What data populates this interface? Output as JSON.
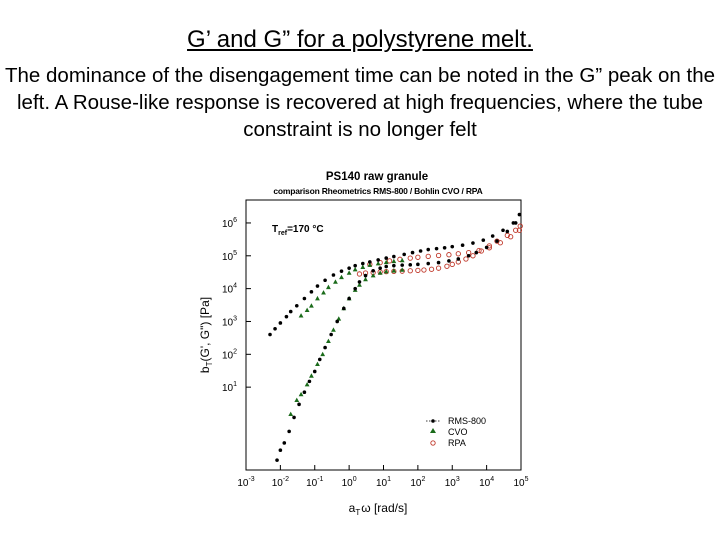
{
  "slide": {
    "title": "G’ and G” for a polystyrene melt.",
    "body": "The dominance of the disengagement time can be noted in the G” peak on the left. A Rouse-like response is recovered at high frequencies, where the tube constraint is no longer felt"
  },
  "chart_data": {
    "type": "scatter",
    "title": "PS140 raw granule",
    "subtitle": "comparison Rheometrics RMS-800 / Bohlin CVO / RPA",
    "annotation": {
      "base": "T",
      "sub": "ref",
      "text": "=170 °C"
    },
    "xlabel": {
      "base": "a",
      "sub": "T",
      "text": "ω [rad/s]"
    },
    "ylabel": {
      "base": "b",
      "sub": "T",
      "text": "(G', G\") [Pa]"
    },
    "x_scale": "log",
    "y_scale": "log",
    "xlim": [
      0.001,
      100000
    ],
    "ylim": [
      0.03,
      5000000
    ],
    "x_ticks": [
      {
        "base": "10",
        "exp": "-3"
      },
      {
        "base": "10",
        "exp": "-2"
      },
      {
        "base": "10",
        "exp": "-1"
      },
      {
        "base": "10",
        "exp": "0"
      },
      {
        "base": "10",
        "exp": "1"
      },
      {
        "base": "10",
        "exp": "2"
      },
      {
        "base": "10",
        "exp": "3"
      },
      {
        "base": "10",
        "exp": "4"
      },
      {
        "base": "10",
        "exp": "5"
      }
    ],
    "y_ticks": [
      {
        "base": "10",
        "exp": "1"
      },
      {
        "base": "10",
        "exp": "2"
      },
      {
        "base": "10",
        "exp": "3"
      },
      {
        "base": "10",
        "exp": "4"
      },
      {
        "base": "10",
        "exp": "5"
      },
      {
        "base": "10",
        "exp": "6"
      }
    ],
    "legend_position": "bottom-right",
    "series": [
      {
        "name": "RMS-800",
        "marker": "filled-circle",
        "color": "#000000",
        "points": [
          [
            0.008,
            0.06
          ],
          [
            0.01,
            0.12
          ],
          [
            0.013,
            0.2
          ],
          [
            0.018,
            0.45
          ],
          [
            0.025,
            1.2
          ],
          [
            0.035,
            3
          ],
          [
            0.05,
            7
          ],
          [
            0.07,
            15
          ],
          [
            0.1,
            30
          ],
          [
            0.14,
            70
          ],
          [
            0.2,
            160
          ],
          [
            0.3,
            400
          ],
          [
            0.45,
            1000
          ],
          [
            0.7,
            2500
          ],
          [
            1,
            5000
          ],
          [
            1.5,
            10000
          ],
          [
            2,
            16000
          ],
          [
            3,
            25000
          ],
          [
            5,
            35000
          ],
          [
            8,
            42000
          ],
          [
            12,
            47000
          ],
          [
            20,
            50000
          ],
          [
            35,
            52000
          ],
          [
            60,
            53000
          ],
          [
            100,
            55000
          ],
          [
            200,
            58000
          ],
          [
            400,
            62000
          ],
          [
            800,
            70000
          ],
          [
            1500,
            80000
          ],
          [
            3000,
            100000
          ],
          [
            5000,
            125000
          ],
          [
            10000,
            180000
          ],
          [
            20000,
            280000
          ],
          [
            40000,
            550000
          ],
          [
            70000,
            1000000
          ],
          [
            0.005,
            400
          ],
          [
            0.007,
            600
          ],
          [
            0.01,
            900
          ],
          [
            0.015,
            1400
          ],
          [
            0.02,
            2000
          ],
          [
            0.03,
            3000
          ],
          [
            0.05,
            5000
          ],
          [
            0.08,
            8000
          ],
          [
            0.12,
            12000
          ],
          [
            0.2,
            18000
          ],
          [
            0.35,
            26000
          ],
          [
            0.6,
            34000
          ],
          [
            1,
            42000
          ],
          [
            1.5,
            50000
          ],
          [
            2.5,
            58000
          ],
          [
            4,
            65000
          ],
          [
            7,
            75000
          ],
          [
            12,
            85000
          ],
          [
            20,
            95000
          ],
          [
            40,
            110000
          ],
          [
            70,
            125000
          ],
          [
            120,
            140000
          ],
          [
            200,
            155000
          ],
          [
            350,
            165000
          ],
          [
            600,
            175000
          ],
          [
            1000,
            190000
          ],
          [
            2000,
            210000
          ],
          [
            4000,
            245000
          ],
          [
            8000,
            300000
          ],
          [
            15000,
            400000
          ],
          [
            30000,
            600000
          ],
          [
            60000,
            1000000
          ],
          [
            90000,
            1800000
          ]
        ]
      },
      {
        "name": "CVO",
        "marker": "filled-triangle",
        "color": "#1a6b1a",
        "points": [
          [
            0.02,
            1.5
          ],
          [
            0.03,
            4
          ],
          [
            0.04,
            6
          ],
          [
            0.06,
            12
          ],
          [
            0.08,
            22
          ],
          [
            0.12,
            50
          ],
          [
            0.17,
            100
          ],
          [
            0.25,
            250
          ],
          [
            0.35,
            550
          ],
          [
            0.5,
            1200
          ],
          [
            0.7,
            2500
          ],
          [
            1,
            5000
          ],
          [
            1.5,
            9000
          ],
          [
            2,
            13000
          ],
          [
            3,
            19000
          ],
          [
            5,
            25000
          ],
          [
            8,
            30000
          ],
          [
            12,
            33000
          ],
          [
            20,
            35000
          ],
          [
            35,
            37000
          ],
          [
            0.04,
            1500
          ],
          [
            0.06,
            2200
          ],
          [
            0.08,
            3000
          ],
          [
            0.12,
            5000
          ],
          [
            0.18,
            7500
          ],
          [
            0.25,
            11000
          ],
          [
            0.4,
            16000
          ],
          [
            0.6,
            22000
          ],
          [
            1,
            30000
          ],
          [
            1.5,
            38000
          ],
          [
            2.5,
            45000
          ],
          [
            4,
            52000
          ],
          [
            7,
            58000
          ],
          [
            12,
            63000
          ],
          [
            20,
            68000
          ],
          [
            35,
            72000
          ]
        ]
      },
      {
        "name": "RPA",
        "marker": "open-circle",
        "color": "#c0392b",
        "points": [
          [
            2,
            28000
          ],
          [
            3,
            30000
          ],
          [
            5,
            31000
          ],
          [
            8,
            32000
          ],
          [
            12,
            33000
          ],
          [
            20,
            33500
          ],
          [
            35,
            34000
          ],
          [
            60,
            35000
          ],
          [
            100,
            36000
          ],
          [
            150,
            37000
          ],
          [
            250,
            39000
          ],
          [
            400,
            42000
          ],
          [
            700,
            48000
          ],
          [
            1000,
            55000
          ],
          [
            1500,
            65000
          ],
          [
            2500,
            80000
          ],
          [
            4000,
            100000
          ],
          [
            7000,
            140000
          ],
          [
            12000,
            200000
          ],
          [
            20000,
            280000
          ],
          [
            40000,
            420000
          ],
          [
            70000,
            600000
          ],
          [
            95000,
            800000
          ],
          [
            4,
            55000
          ],
          [
            8,
            62000
          ],
          [
            15,
            70000
          ],
          [
            30,
            78000
          ],
          [
            60,
            85000
          ],
          [
            100,
            90000
          ],
          [
            200,
            96000
          ],
          [
            400,
            102000
          ],
          [
            800,
            108000
          ],
          [
            1500,
            115000
          ],
          [
            3000,
            125000
          ],
          [
            6000,
            145000
          ],
          [
            12000,
            175000
          ],
          [
            25000,
            250000
          ],
          [
            50000,
            380000
          ],
          [
            90000,
            600000
          ]
        ]
      }
    ]
  }
}
